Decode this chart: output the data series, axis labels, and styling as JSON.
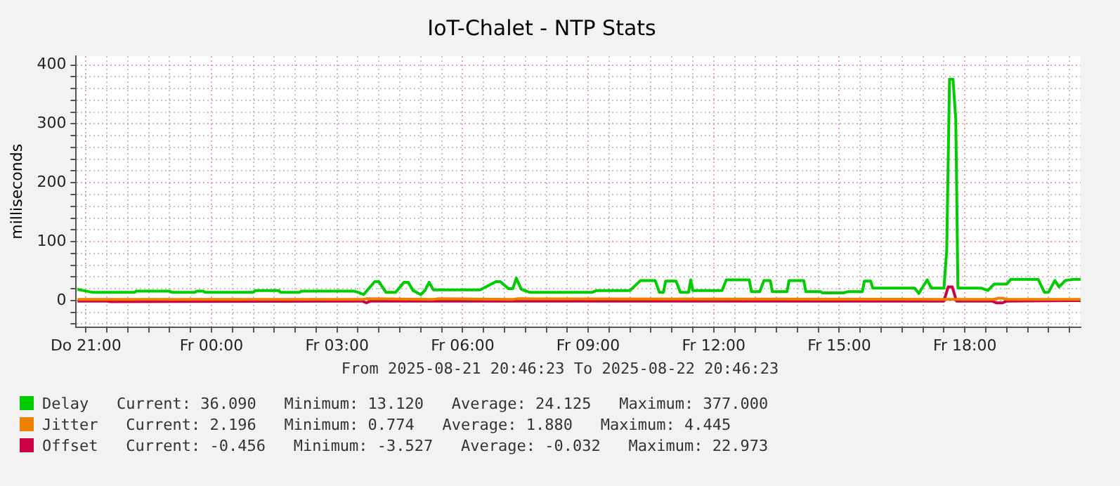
{
  "chart_data": {
    "type": "line",
    "title": "IoT-Chalet - NTP Stats",
    "ylabel": "milliseconds",
    "xlim": [
      "2025-08-21T20:46",
      "2025-08-22T20:46"
    ],
    "ylim": [
      -45,
      415
    ],
    "xticks": [
      {
        "value": "2025-08-21T21:00",
        "label": "Do 21:00"
      },
      {
        "value": "2025-08-21T21:30",
        "label": null
      },
      {
        "value": "2025-08-21T22:00",
        "label": null
      },
      {
        "value": "2025-08-21T22:30",
        "label": null
      },
      {
        "value": "2025-08-21T23:00",
        "label": null
      },
      {
        "value": "2025-08-21T23:30",
        "label": null
      },
      {
        "value": "2025-08-22T00:00",
        "label": "Fr 00:00"
      },
      {
        "value": "2025-08-22T00:30",
        "label": null
      },
      {
        "value": "2025-08-22T01:00",
        "label": null
      },
      {
        "value": "2025-08-22T01:30",
        "label": null
      },
      {
        "value": "2025-08-22T02:00",
        "label": null
      },
      {
        "value": "2025-08-22T02:30",
        "label": null
      },
      {
        "value": "2025-08-22T03:00",
        "label": "Fr 03:00"
      },
      {
        "value": "2025-08-22T03:30",
        "label": null
      },
      {
        "value": "2025-08-22T04:00",
        "label": null
      },
      {
        "value": "2025-08-22T04:30",
        "label": null
      },
      {
        "value": "2025-08-22T05:00",
        "label": null
      },
      {
        "value": "2025-08-22T05:30",
        "label": null
      },
      {
        "value": "2025-08-22T06:00",
        "label": "Fr 06:00"
      },
      {
        "value": "2025-08-22T06:30",
        "label": null
      },
      {
        "value": "2025-08-22T07:00",
        "label": null
      },
      {
        "value": "2025-08-22T07:30",
        "label": null
      },
      {
        "value": "2025-08-22T08:00",
        "label": null
      },
      {
        "value": "2025-08-22T08:30",
        "label": null
      },
      {
        "value": "2025-08-22T09:00",
        "label": "Fr 09:00"
      },
      {
        "value": "2025-08-22T09:30",
        "label": null
      },
      {
        "value": "2025-08-22T10:00",
        "label": null
      },
      {
        "value": "2025-08-22T10:30",
        "label": null
      },
      {
        "value": "2025-08-22T11:00",
        "label": null
      },
      {
        "value": "2025-08-22T11:30",
        "label": null
      },
      {
        "value": "2025-08-22T12:00",
        "label": "Fr 12:00"
      },
      {
        "value": "2025-08-22T12:30",
        "label": null
      },
      {
        "value": "2025-08-22T13:00",
        "label": null
      },
      {
        "value": "2025-08-22T13:30",
        "label": null
      },
      {
        "value": "2025-08-22T14:00",
        "label": null
      },
      {
        "value": "2025-08-22T14:30",
        "label": null
      },
      {
        "value": "2025-08-22T15:00",
        "label": "Fr 15:00"
      },
      {
        "value": "2025-08-22T15:30",
        "label": null
      },
      {
        "value": "2025-08-22T16:00",
        "label": null
      },
      {
        "value": "2025-08-22T16:30",
        "label": null
      },
      {
        "value": "2025-08-22T17:00",
        "label": null
      },
      {
        "value": "2025-08-22T17:30",
        "label": null
      },
      {
        "value": "2025-08-22T18:00",
        "label": "Fr 18:00"
      },
      {
        "value": "2025-08-22T18:30",
        "label": null
      },
      {
        "value": "2025-08-22T19:00",
        "label": null
      },
      {
        "value": "2025-08-22T19:30",
        "label": null
      },
      {
        "value": "2025-08-22T20:00",
        "label": null
      },
      {
        "value": "2025-08-22T20:30",
        "label": null
      }
    ],
    "yticks": [
      {
        "value": -40,
        "label": null
      },
      {
        "value": -20,
        "label": null
      },
      0,
      {
        "value": 20,
        "label": null
      },
      {
        "value": 40,
        "label": null
      },
      {
        "value": 60,
        "label": null
      },
      {
        "value": 80,
        "label": null
      },
      100,
      {
        "value": 120,
        "label": null
      },
      {
        "value": 140,
        "label": null
      },
      {
        "value": 160,
        "label": null
      },
      {
        "value": 180,
        "label": null
      },
      200,
      {
        "value": 220,
        "label": null
      },
      {
        "value": 240,
        "label": null
      },
      {
        "value": 260,
        "label": null
      },
      {
        "value": 280,
        "label": null
      },
      300,
      {
        "value": 320,
        "label": null
      },
      {
        "value": 340,
        "label": null
      },
      {
        "value": 360,
        "label": null
      },
      {
        "value": 380,
        "label": null
      },
      400
    ],
    "grid": true,
    "legend": "bottom",
    "marker": "none",
    "line_style": "solid",
    "series": [
      {
        "name": "Delay",
        "color": "#00cc00",
        "x": [
          "2025-08-21T20:48",
          "2025-08-21T21:09",
          "2025-08-21T22:10",
          "2025-08-21T22:12",
          "2025-08-21T23:00",
          "2025-08-21T23:03",
          "2025-08-21T23:36",
          "2025-08-21T23:39",
          "2025-08-21T23:48",
          "2025-08-21T23:51",
          "2025-08-22T01:00",
          "2025-08-22T01:03",
          "2025-08-22T01:36",
          "2025-08-22T01:39",
          "2025-08-22T02:06",
          "2025-08-22T02:09",
          "2025-08-22T03:24",
          "2025-08-22T03:30",
          "2025-08-22T03:38",
          "2025-08-22T03:54",
          "2025-08-22T04:00",
          "2025-08-22T04:10",
          "2025-08-22T04:24",
          "2025-08-22T04:36",
          "2025-08-22T04:42",
          "2025-08-22T04:49",
          "2025-08-22T05:00",
          "2025-08-22T05:06",
          "2025-08-22T05:12",
          "2025-08-22T05:18",
          "2025-08-22T06:25",
          "2025-08-22T06:48",
          "2025-08-22T06:54",
          "2025-08-22T07:06",
          "2025-08-22T07:12",
          "2025-08-22T07:17",
          "2025-08-22T07:24",
          "2025-08-22T07:36",
          "2025-08-22T09:06",
          "2025-08-22T09:12",
          "2025-08-22T10:00",
          "2025-08-22T10:15",
          "2025-08-22T10:36",
          "2025-08-22T10:42",
          "2025-08-22T10:48",
          "2025-08-22T10:51",
          "2025-08-22T11:06",
          "2025-08-22T11:12",
          "2025-08-22T11:24",
          "2025-08-22T11:27",
          "2025-08-22T11:30",
          "2025-08-22T12:12",
          "2025-08-22T12:18",
          "2025-08-22T12:51",
          "2025-08-22T12:54",
          "2025-08-22T13:06",
          "2025-08-22T13:12",
          "2025-08-22T13:21",
          "2025-08-22T13:24",
          "2025-08-22T13:45",
          "2025-08-22T13:48",
          "2025-08-22T14:09",
          "2025-08-22T14:12",
          "2025-08-22T14:33",
          "2025-08-22T14:36",
          "2025-08-22T15:06",
          "2025-08-22T15:12",
          "2025-08-22T15:33",
          "2025-08-22T15:36",
          "2025-08-22T15:45",
          "2025-08-22T15:48",
          "2025-08-22T16:48",
          "2025-08-22T16:54",
          "2025-08-22T17:06",
          "2025-08-22T17:12",
          "2025-08-22T17:30",
          "2025-08-22T17:34",
          "2025-08-22T17:38",
          "2025-08-22T17:43",
          "2025-08-22T17:47",
          "2025-08-22T17:50",
          "2025-08-22T18:24",
          "2025-08-22T18:33",
          "2025-08-22T18:42",
          "2025-08-22T19:00",
          "2025-08-22T19:06",
          "2025-08-22T19:45",
          "2025-08-22T19:54",
          "2025-08-22T20:00",
          "2025-08-22T20:09",
          "2025-08-22T20:15",
          "2025-08-22T20:24",
          "2025-08-22T20:36",
          "2025-08-22T20:46"
        ],
        "values": [
          19,
          14,
          14,
          16,
          16,
          14,
          14,
          16,
          16,
          14,
          14,
          17,
          17,
          14,
          14,
          16,
          16,
          14,
          10,
          32,
          32,
          14,
          14,
          31,
          31,
          17,
          10,
          17,
          31,
          18,
          18,
          32,
          32,
          20,
          20,
          38,
          19,
          14,
          14,
          17,
          17,
          34,
          34,
          14,
          14,
          33,
          33,
          14,
          14,
          35,
          17,
          17,
          35,
          35,
          15,
          15,
          34,
          34,
          15,
          15,
          34,
          34,
          15,
          15,
          13,
          13,
          15,
          15,
          33,
          33,
          21,
          21,
          12,
          35,
          21,
          21,
          86,
          376,
          376,
          307,
          21,
          21,
          17,
          28,
          28,
          36,
          36,
          14,
          14,
          34,
          23,
          34,
          36,
          36
        ]
      },
      {
        "name": "Jitter",
        "color": "#f08000",
        "x": [
          "2025-08-21T20:48",
          "2025-08-22T03:36",
          "2025-08-22T03:42",
          "2025-08-22T05:18",
          "2025-08-22T05:24",
          "2025-08-22T07:12",
          "2025-08-22T07:18",
          "2025-08-22T17:36",
          "2025-08-22T18:42",
          "2025-08-22T18:48",
          "2025-08-22T18:54",
          "2025-08-22T19:00",
          "2025-08-22T20:46"
        ],
        "values": [
          2,
          2,
          3,
          2,
          3,
          2,
          3,
          2,
          2,
          4,
          4,
          2,
          2
        ]
      },
      {
        "name": "Offset",
        "color": "#cc0044",
        "x": [
          "2025-08-21T20:48",
          "2025-08-21T21:30",
          "2025-08-21T21:36",
          "2025-08-22T03:36",
          "2025-08-22T03:42",
          "2025-08-22T03:48",
          "2025-08-22T17:30",
          "2025-08-22T17:36",
          "2025-08-22T17:42",
          "2025-08-22T17:48",
          "2025-08-22T18:39",
          "2025-08-22T18:45",
          "2025-08-22T18:54",
          "2025-08-22T19:00",
          "2025-08-22T20:46"
        ],
        "values": [
          -1,
          -1,
          -2,
          -1,
          -4,
          -1,
          -1,
          23,
          23,
          -1,
          -1,
          -4,
          -4,
          -1,
          0
        ]
      }
    ],
    "annotations": [
      "From 2025-08-21 20:46:23 To 2025-08-22 20:46:23",
      "Current: 36.090   Minimum: 13.120   Average: 24.125   Maximum: 377.000",
      "Current: 2.196   Minimum: 0.774   Average: 1.880   Maximum: 4.445",
      "Current: -0.456   Minimum: -3.527   Average: -0.032   Maximum: 22.973"
    ]
  }
}
